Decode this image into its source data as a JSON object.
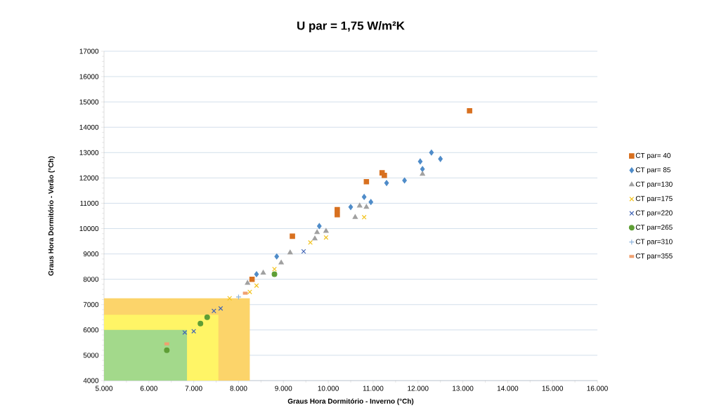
{
  "chart_data": {
    "type": "scatter",
    "title": "U par = 1,75 W/m²K",
    "xlabel": "Graus Hora Dormitório - Inverno (°Ch)",
    "ylabel": "Graus Hora Dormitório - Verão (°Ch)",
    "xlim": [
      5000,
      16000
    ],
    "ylim": [
      4000,
      17000
    ],
    "xticks": [
      {
        "value": 5000,
        "label": "5.000"
      },
      {
        "value": 6000,
        "label": "6.000"
      },
      {
        "value": 7000,
        "label": "7.000"
      },
      {
        "value": 8000,
        "label": "8.000"
      },
      {
        "value": 9000,
        "label": "9.000"
      },
      {
        "value": 10000,
        "label": "10.000"
      },
      {
        "value": 11000,
        "label": "11.000"
      },
      {
        "value": 12000,
        "label": "12.000"
      },
      {
        "value": 13000,
        "label": "13.000"
      },
      {
        "value": 14000,
        "label": "14.000"
      },
      {
        "value": 15000,
        "label": "15.000"
      },
      {
        "value": 16000,
        "label": "16.000"
      }
    ],
    "yticks": [
      4000,
      5000,
      6000,
      7000,
      8000,
      9000,
      10000,
      11000,
      12000,
      13000,
      14000,
      15000,
      16000,
      17000
    ],
    "grid": "y",
    "legend": "right",
    "series": [
      {
        "type": "area",
        "color": "#fcd46a",
        "x": [
          5000,
          8250
        ],
        "values": [
          7250,
          7250
        ]
      },
      {
        "type": "area",
        "color": "#fff566",
        "x": [
          5000,
          7550
        ],
        "values": [
          6600,
          6600
        ]
      },
      {
        "type": "area",
        "color": "#a3d98b",
        "x": [
          5000,
          6850
        ],
        "values": [
          6000,
          6000
        ]
      },
      {
        "name": "CT par= 40",
        "color": "#d8701f",
        "marker": "square",
        "x": [
          8300,
          9200,
          10200,
          10200,
          10850,
          11200,
          11250,
          13150
        ],
        "values": [
          8000,
          9700,
          10750,
          10550,
          11850,
          12200,
          12100,
          14650
        ]
      },
      {
        "name": "CT par= 85",
        "color": "#4f8cc9",
        "marker": "diamond",
        "x": [
          8400,
          8850,
          9800,
          10500,
          10800,
          10950,
          11300,
          11700,
          12050,
          12100,
          12300,
          12500
        ],
        "values": [
          8200,
          8900,
          10100,
          10850,
          11250,
          11050,
          11800,
          11900,
          12650,
          12350,
          13000,
          12750
        ]
      },
      {
        "name": "CT par=130",
        "color": "#a0a0a0",
        "marker": "triangle",
        "x": [
          8200,
          8550,
          8950,
          9150,
          9700,
          9750,
          9950,
          10600,
          10700,
          10850,
          12100
        ],
        "values": [
          7850,
          8250,
          8650,
          9050,
          9600,
          9850,
          9900,
          10450,
          10900,
          10850,
          12150
        ]
      },
      {
        "name": "CT par=175",
        "color": "#f2c21b",
        "marker": "cross",
        "x": [
          7800,
          8250,
          8400,
          8800,
          9600,
          9950,
          10800
        ],
        "values": [
          7250,
          7500,
          7750,
          8400,
          9450,
          9650,
          10450
        ]
      },
      {
        "name": "CT par=220",
        "color": "#3f63b5",
        "marker": "cross",
        "x": [
          6800,
          7000,
          7450,
          7600,
          9450
        ],
        "values": [
          5900,
          5950,
          6750,
          6850,
          9100
        ]
      },
      {
        "name": "CT par=265",
        "color": "#5e9e35",
        "marker": "circle",
        "x": [
          6400,
          7150,
          7300,
          8800
        ],
        "values": [
          5200,
          6250,
          6500,
          8200
        ]
      },
      {
        "name": "CT par=310",
        "color": "#8fb4dc",
        "marker": "plus",
        "x": [
          8000
        ],
        "values": [
          7300
        ]
      },
      {
        "name": "CT par=355",
        "color": "#f0a070",
        "marker": "square",
        "x": [
          6400,
          8150
        ],
        "values": [
          5450,
          7450
        ]
      }
    ]
  }
}
